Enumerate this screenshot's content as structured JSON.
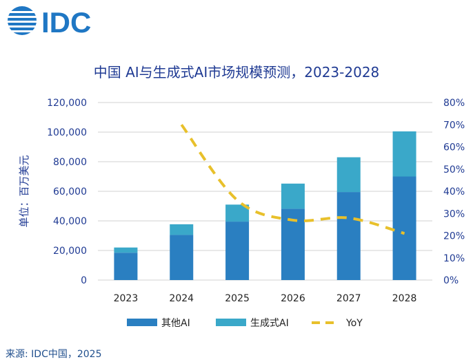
{
  "logo": {
    "text": "IDC",
    "color": "#1f77c4"
  },
  "source": "来源: IDC中国，2025",
  "chart_data": {
    "type": "bar",
    "stacked": true,
    "title": "中国 AI与生成式AI市场规模预测，2023-2028",
    "ylabel": "单位：百万美元",
    "categories": [
      "2023",
      "2024",
      "2025",
      "2026",
      "2027",
      "2028"
    ],
    "series": [
      {
        "name": "其他AI",
        "values": [
          18500,
          30500,
          39500,
          48200,
          59500,
          70000
        ],
        "color": "#2a7fc1"
      },
      {
        "name": "生成式AI",
        "values": [
          3500,
          7200,
          11500,
          17000,
          23500,
          30500
        ],
        "color": "#3aa8c9"
      }
    ],
    "line": {
      "name": "YoY",
      "values": [
        null,
        70,
        36,
        27,
        28,
        21
      ],
      "color": "#e8c02b"
    },
    "ylim": [
      0,
      120000
    ],
    "y_ticks": [
      "0",
      "20,000",
      "40,000",
      "60,000",
      "80,000",
      "100,000",
      "120,000"
    ],
    "y2lim": [
      0,
      80
    ],
    "y2_ticks": [
      "0%",
      "10%",
      "20%",
      "30%",
      "40%",
      "50%",
      "60%",
      "70%",
      "80%"
    ],
    "grid": true,
    "legend": "bottom"
  }
}
